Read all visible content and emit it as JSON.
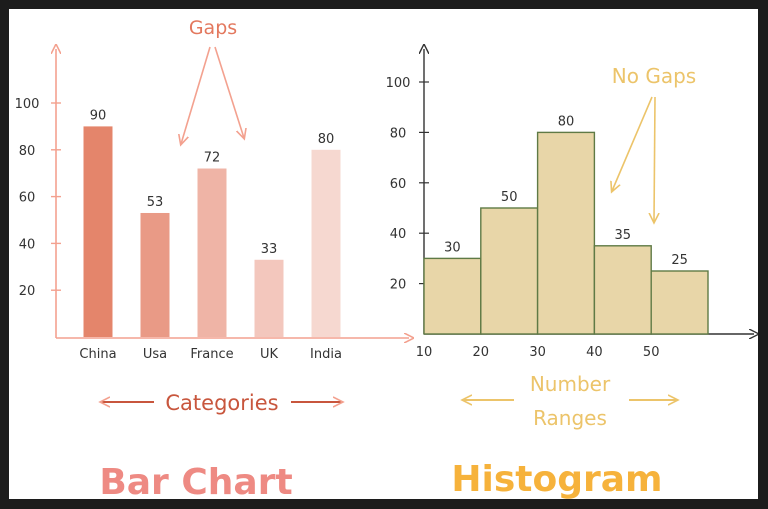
{
  "colors": {
    "background_frame": "#1c1c1c",
    "bar_axis": "#f3a18f",
    "bar_label_text": "#e3785e",
    "histogram_fill": "#e8d6a8",
    "histogram_stroke": "#5f7a45",
    "histogram_annotation": "#ecc46a",
    "histogram_title": "#f6b23b",
    "bar_title": "#ee8a83",
    "dark_axis": "#333333"
  },
  "chart_data": [
    {
      "type": "bar",
      "title": "Bar Chart",
      "categories": [
        "China",
        "Usa",
        "France",
        "UK",
        "India"
      ],
      "values": [
        90,
        53,
        72,
        33,
        80
      ],
      "bar_colors": [
        "#e4856b",
        "#e99a86",
        "#efb4a6",
        "#f3c7bd",
        "#f6d8d0"
      ],
      "yticks": [
        20,
        40,
        60,
        80,
        100
      ],
      "ylim": [
        0,
        100
      ],
      "annotation": "Gaps",
      "axis_caption": "Categories",
      "grid": false
    },
    {
      "type": "bar",
      "title": "Histogram",
      "bins": [
        [
          10,
          20
        ],
        [
          20,
          30
        ],
        [
          30,
          40
        ],
        [
          40,
          50
        ],
        [
          50,
          60
        ]
      ],
      "values": [
        30,
        50,
        80,
        35,
        25
      ],
      "xticks": [
        10,
        20,
        30,
        40,
        50
      ],
      "yticks": [
        20,
        40,
        60,
        80,
        100
      ],
      "ylim": [
        0,
        100
      ],
      "annotation": "No Gaps",
      "axis_caption_line1": "Number",
      "axis_caption_line2": "Ranges",
      "grid": false
    }
  ]
}
